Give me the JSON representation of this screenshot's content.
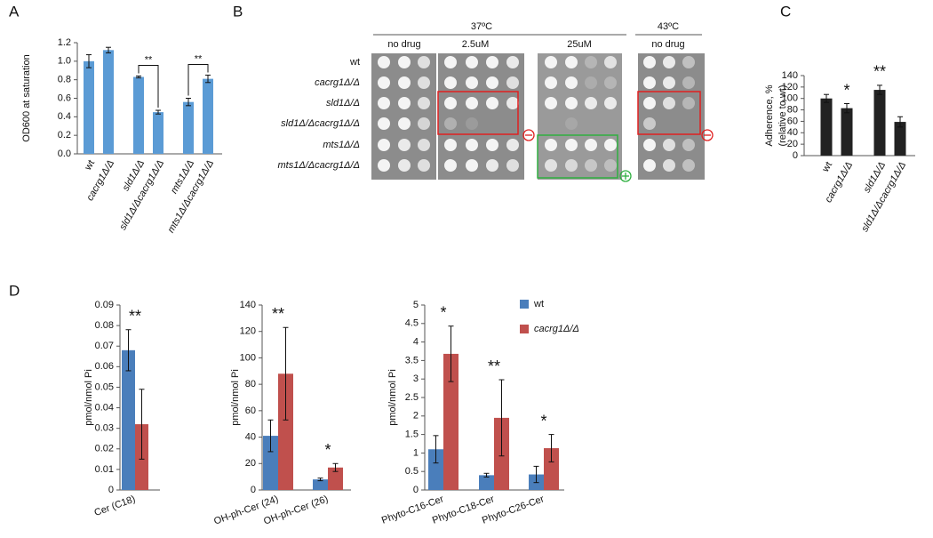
{
  "chart_data": [
    {
      "type": "bar",
      "panel_label": "A",
      "ylabel": "OD600 at saturation",
      "categories": [
        "wt",
        "cacrg1Δ/Δ",
        "sld1Δ/Δ",
        "sld1Δ/Δcacrg1Δ/Δ",
        "mts1Δ/Δ",
        "mts1Δ/Δcacrg1Δ/Δ"
      ],
      "values": [
        1.0,
        1.12,
        0.83,
        0.45,
        0.56,
        0.81
      ],
      "errors": [
        0.07,
        0.03,
        0.01,
        0.02,
        0.04,
        0.04
      ],
      "color": "#5b9bd5",
      "annotations": [
        null,
        null,
        null,
        "**",
        null,
        "**"
      ],
      "ylim": [
        0,
        1.2
      ],
      "yticks": [
        {
          "value": 0,
          "label": "0.0"
        },
        0.2,
        0.4,
        0.6,
        0.8,
        {
          "value": 1,
          "label": "1.0"
        },
        1.2
      ]
    },
    {
      "type": "bar",
      "panel_label": "C",
      "ylabel": [
        "Adherence, %",
        "(relative to wt)"
      ],
      "categories": [
        "wt",
        "cacrg1Δ/Δ",
        "sld1Δ/Δ",
        "sld1Δ/Δcacrg1Δ/Δ"
      ],
      "values": [
        100,
        83,
        115,
        59
      ],
      "errors": [
        7,
        8,
        8,
        9
      ],
      "color": "#222222",
      "annotations": [
        null,
        "*",
        "**",
        null
      ],
      "ylim": [
        0,
        140
      ],
      "yticks": [
        0,
        20,
        40,
        60,
        80,
        100,
        120,
        140
      ]
    },
    {
      "type": "bar",
      "panel_label": "D",
      "ylabel": "pmol/nmol Pi",
      "categories": [
        "Cer (C18)"
      ],
      "series": [
        {
          "name": "wt",
          "color": "#4a7ebb",
          "values": [
            0.068
          ],
          "errors": [
            0.01
          ]
        },
        {
          "name": "cacrg1Δ/Δ",
          "color": "#c0504d",
          "values": [
            0.032
          ],
          "errors": [
            0.017
          ]
        }
      ],
      "annotations": [
        "**"
      ],
      "ylim": [
        0,
        0.09
      ],
      "yticks": [
        0,
        0.01,
        0.02,
        0.03,
        0.04,
        0.05,
        0.06,
        0.07,
        0.08,
        0.09
      ]
    },
    {
      "type": "bar",
      "ylabel": "pmol/nmol Pi",
      "categories": [
        "OH-ph-Cer (24)",
        "OH-ph-Cer (26)"
      ],
      "series": [
        {
          "name": "wt",
          "color": "#4a7ebb",
          "values": [
            41,
            8
          ],
          "errors": [
            12,
            1
          ]
        },
        {
          "name": "cacrg1Δ/Δ",
          "color": "#c0504d",
          "values": [
            88,
            17
          ],
          "errors": [
            35,
            3
          ]
        }
      ],
      "annotations": [
        "**",
        "*"
      ],
      "ylim": [
        0,
        140
      ],
      "yticks": [
        0,
        20,
        40,
        60,
        80,
        100,
        120,
        140
      ]
    },
    {
      "type": "bar",
      "ylabel": "pmol/nmol Pi",
      "categories": [
        "Phyto-C16-Cer",
        "Phyto-C18-Cer",
        "Phyto-C26-Cer"
      ],
      "series": [
        {
          "name": "wt",
          "color": "#4a7ebb",
          "values": [
            1.1,
            0.4,
            0.42
          ],
          "errors": [
            0.37,
            0.05,
            0.22
          ]
        },
        {
          "name": "cacrg1Δ/Δ",
          "color": "#c0504d",
          "values": [
            3.68,
            1.95,
            1.13
          ],
          "errors": [
            0.75,
            1.03,
            0.37
          ]
        }
      ],
      "annotations": [
        "*",
        "**",
        "*"
      ],
      "legend": "outside-right",
      "ylim": [
        0,
        5
      ],
      "yticks": [
        0,
        0.5,
        1,
        1.5,
        2,
        2.5,
        3,
        3.5,
        4,
        4.5,
        5
      ]
    }
  ],
  "panel_b": {
    "panel_label": "B",
    "temperatures": [
      "37ºC",
      "43ºC"
    ],
    "conditions": [
      "no drug",
      "2.5uM",
      "25uM",
      "no drug"
    ],
    "strains": [
      "wt",
      "cacrg1Δ/Δ",
      "sld1Δ/Δ",
      "sld1Δ/Δcacrg1Δ/Δ",
      "mts1Δ/Δ",
      "mts1Δ/Δcacrg1Δ/Δ"
    ]
  }
}
